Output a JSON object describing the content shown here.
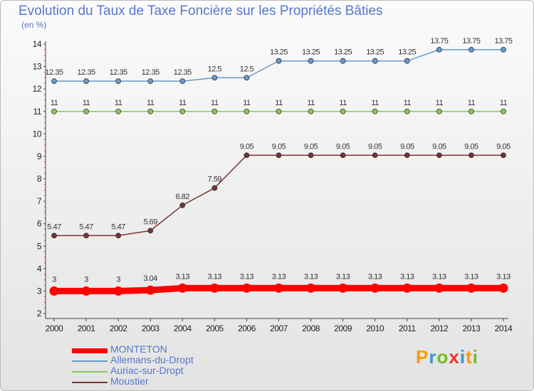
{
  "title": "Evolution du Taux de Taxe Foncière sur les Propriétés Bâties",
  "unit_label": "(en %)",
  "logo": "Proxiti",
  "chart_data": {
    "type": "line",
    "title": "Evolution du Taux de Taxe Foncière sur les Propriétés Bâties",
    "ylabel": "(en %)",
    "xlabel": "",
    "ylim": [
      2,
      14
    ],
    "yticks": [
      "2",
      "3",
      "4",
      "5",
      "6",
      "7",
      "8",
      "9",
      "10",
      "11",
      "12",
      "13",
      "14"
    ],
    "categories": [
      "2000",
      "2001",
      "2002",
      "2003",
      "2004",
      "2005",
      "2006",
      "2007",
      "2008",
      "2009",
      "2010",
      "2011",
      "2012",
      "2013",
      "2014"
    ],
    "series": [
      {
        "name": "MONTETON",
        "color": "#ff0000",
        "values": [
          3,
          3,
          3,
          3.04,
          3.13,
          3.13,
          3.13,
          3.13,
          3.13,
          3.13,
          3.13,
          3.13,
          3.13,
          3.13,
          3.13
        ],
        "labels": [
          "3",
          "3",
          "3",
          "3.04",
          "3.13",
          "3.13",
          "3.13",
          "3.13",
          "3.13",
          "3.13",
          "3.13",
          "3.13",
          "3.13",
          "3.13",
          "3.13"
        ]
      },
      {
        "name": "Allemans-du-Dropt",
        "color": "#6699cc",
        "values": [
          12.35,
          12.35,
          12.35,
          12.35,
          12.35,
          12.5,
          12.5,
          13.25,
          13.25,
          13.25,
          13.25,
          13.25,
          13.75,
          13.75,
          13.75
        ],
        "labels": [
          "12.35",
          "12.35",
          "12.35",
          "12.35",
          "12.35",
          "12.5",
          "12.5",
          "13.25",
          "13.25",
          "13.25",
          "13.25",
          "13.25",
          "13.75",
          "13.75",
          "13.75"
        ]
      },
      {
        "name": "Auriac-sur-Dropt",
        "color": "#88cc55",
        "values": [
          11,
          11,
          11,
          11,
          11,
          11,
          11,
          11,
          11,
          11,
          11,
          11,
          11,
          11,
          11
        ],
        "labels": [
          "11",
          "11",
          "11",
          "11",
          "11",
          "11",
          "11",
          "11",
          "11",
          "11",
          "11",
          "11",
          "11",
          "11",
          "11"
        ]
      },
      {
        "name": "Moustier",
        "color": "#773333",
        "values": [
          5.47,
          5.47,
          5.47,
          5.69,
          6.82,
          7.59,
          9.05,
          9.05,
          9.05,
          9.05,
          9.05,
          9.05,
          9.05,
          9.05,
          9.05
        ],
        "labels": [
          "5.47",
          "5.47",
          "5.47",
          "5.69",
          "6.82",
          "7.59",
          "9.05",
          "9.05",
          "9.05",
          "9.05",
          "9.05",
          "9.05",
          "9.05",
          "9.05",
          "9.05"
        ]
      }
    ],
    "legend_position": "bottom-left",
    "grid": false
  }
}
